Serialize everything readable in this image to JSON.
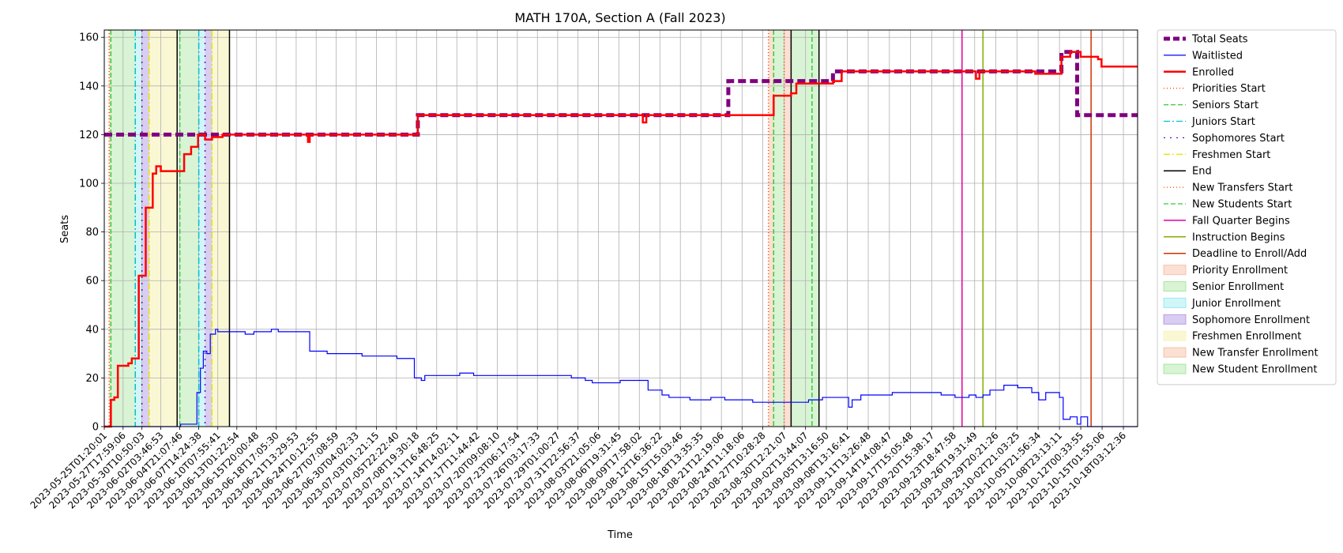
{
  "chart_data": {
    "type": "line",
    "title": "MATH 170A, Section A (Fall 2023)",
    "xlabel": "Time",
    "ylabel": "Seats",
    "ylim": [
      0,
      163
    ],
    "yticks": [
      0,
      20,
      40,
      60,
      80,
      100,
      120,
      140,
      160
    ],
    "grid": true,
    "legend_position": "outside-right",
    "x_range": [
      "2023-05-25T01:20:01",
      "2023-10-20T04:00:00"
    ],
    "xticks": [
      "2023-05-25T01:20:01",
      "2023-05-27T17:59:06",
      "2023-05-30T10:50:03",
      "2023-06-02T03:46:53",
      "2023-06-04T21:07:46",
      "2023-06-07T14:24:38",
      "2023-06-10T07:55:41",
      "2023-06-13T01:22:54",
      "2023-06-15T20:00:48",
      "2023-06-18T17:05:30",
      "2023-06-21T13:29:53",
      "2023-06-24T10:12:55",
      "2023-06-27T07:08:59",
      "2023-06-30T04:02:33",
      "2023-07-03T01:21:15",
      "2023-07-05T22:22:40",
      "2023-07-08T19:30:18",
      "2023-07-11T16:48:25",
      "2023-07-14T14:02:11",
      "2023-07-17T11:44:42",
      "2023-07-20T09:08:10",
      "2023-07-23T06:17:54",
      "2023-07-26T03:17:33",
      "2023-07-29T01:00:27",
      "2023-07-31T22:56:37",
      "2023-08-03T21:05:06",
      "2023-08-06T19:31:45",
      "2023-08-09T17:58:02",
      "2023-08-12T16:36:22",
      "2023-08-15T15:03:46",
      "2023-08-18T13:35:35",
      "2023-08-21T12:19:06",
      "2023-08-24T11:18:06",
      "2023-08-27T10:28:28",
      "2023-08-30T12:21:07",
      "2023-09-02T13:44:07",
      "2023-09-05T13:16:50",
      "2023-09-08T13:16:41",
      "2023-09-11T13:26:48",
      "2023-09-14T14:08:47",
      "2023-09-17T15:05:48",
      "2023-09-20T15:38:17",
      "2023-09-23T18:47:58",
      "2023-09-26T19:31:49",
      "2023-09-29T20:21:26",
      "2023-10-02T21:03:25",
      "2023-10-05T21:56:34",
      "2023-10-08T23:13:11",
      "2023-10-12T00:33:55",
      "2023-10-15T01:55:06",
      "2023-10-18T03:12:36"
    ],
    "series": [
      {
        "name": "Total Seats",
        "color": "#800080",
        "style": "dashed-thick",
        "points": [
          [
            "2023-05-25T01:20:01",
            120
          ],
          [
            "2023-07-08T19:30:18",
            120
          ],
          [
            "2023-07-09T00:00:00",
            128
          ],
          [
            "2023-08-22T00:00:00",
            128
          ],
          [
            "2023-08-22T12:00:00",
            142
          ],
          [
            "2023-09-06T00:00:00",
            142
          ],
          [
            "2023-09-06T12:00:00",
            146
          ],
          [
            "2023-10-08T23:13:11",
            146
          ],
          [
            "2023-10-09T06:00:00",
            154
          ],
          [
            "2023-10-11T00:00:00",
            154
          ],
          [
            "2023-10-11T12:00:00",
            128
          ],
          [
            "2023-10-20T04:00:00",
            128
          ]
        ]
      },
      {
        "name": "Waitlisted",
        "color": "#0000ff",
        "style": "solid-thin",
        "points": [
          [
            "2023-05-25T01:20:01",
            0
          ],
          [
            "2023-06-04T21:07:46",
            0
          ],
          [
            "2023-06-05T00:00:00",
            1
          ],
          [
            "2023-06-06T12:00:00",
            1
          ],
          [
            "2023-06-07T08:00:00",
            14
          ],
          [
            "2023-06-07T20:00:00",
            24
          ],
          [
            "2023-06-08T06:00:00",
            31
          ],
          [
            "2023-06-08T18:00:00",
            30
          ],
          [
            "2023-06-09T06:00:00",
            38
          ],
          [
            "2023-06-10T00:00:00",
            40
          ],
          [
            "2023-06-10T07:55:41",
            39
          ],
          [
            "2023-06-14T00:00:00",
            39
          ],
          [
            "2023-06-14T06:00:00",
            38
          ],
          [
            "2023-06-15T12:00:00",
            39
          ],
          [
            "2023-06-18T00:00:00",
            40
          ],
          [
            "2023-06-19T00:00:00",
            39
          ],
          [
            "2023-06-23T00:00:00",
            39
          ],
          [
            "2023-06-23T12:00:00",
            31
          ],
          [
            "2023-06-26T00:00:00",
            30
          ],
          [
            "2023-06-29T00:00:00",
            30
          ],
          [
            "2023-07-01T00:00:00",
            29
          ],
          [
            "2023-07-06T00:00:00",
            28
          ],
          [
            "2023-07-08T00:00:00",
            28
          ],
          [
            "2023-07-08T12:00:00",
            20
          ],
          [
            "2023-07-09T12:00:00",
            19
          ],
          [
            "2023-07-10T00:00:00",
            21
          ],
          [
            "2023-07-15T00:00:00",
            22
          ],
          [
            "2023-07-17T00:00:00",
            21
          ],
          [
            "2023-07-30T00:00:00",
            21
          ],
          [
            "2023-07-31T00:00:00",
            20
          ],
          [
            "2023-08-02T00:00:00",
            19
          ],
          [
            "2023-08-03T00:00:00",
            18
          ],
          [
            "2023-08-07T00:00:00",
            19
          ],
          [
            "2023-08-10T00:00:00",
            19
          ],
          [
            "2023-08-11T00:00:00",
            15
          ],
          [
            "2023-08-13T00:00:00",
            13
          ],
          [
            "2023-08-14T00:00:00",
            12
          ],
          [
            "2023-08-17T00:00:00",
            11
          ],
          [
            "2023-08-20T00:00:00",
            12
          ],
          [
            "2023-08-22T00:00:00",
            11
          ],
          [
            "2023-08-26T00:00:00",
            10
          ],
          [
            "2023-09-03T00:00:00",
            11
          ],
          [
            "2023-09-05T00:00:00",
            12
          ],
          [
            "2023-09-08T13:16:41",
            12
          ],
          [
            "2023-09-08T18:00:00",
            8
          ],
          [
            "2023-09-09T06:00:00",
            11
          ],
          [
            "2023-09-10T12:00:00",
            13
          ],
          [
            "2023-09-14T00:00:00",
            13
          ],
          [
            "2023-09-15T00:00:00",
            14
          ],
          [
            "2023-09-20T00:00:00",
            14
          ],
          [
            "2023-09-22T00:00:00",
            13
          ],
          [
            "2023-09-24T00:00:00",
            12
          ],
          [
            "2023-09-26T00:00:00",
            13
          ],
          [
            "2023-09-27T00:00:00",
            12
          ],
          [
            "2023-09-28T00:00:00",
            13
          ],
          [
            "2023-09-29T00:00:00",
            15
          ],
          [
            "2023-10-01T00:00:00",
            17
          ],
          [
            "2023-10-03T00:00:00",
            16
          ],
          [
            "2023-10-05T00:00:00",
            14
          ],
          [
            "2023-10-06T00:00:00",
            11
          ],
          [
            "2023-10-07T00:00:00",
            14
          ],
          [
            "2023-10-08T23:13:11",
            12
          ],
          [
            "2023-10-09T12:00:00",
            3
          ],
          [
            "2023-10-10T12:00:00",
            4
          ],
          [
            "2023-10-11T12:00:00",
            1
          ],
          [
            "2023-10-12T00:33:55",
            4
          ],
          [
            "2023-10-13T00:00:00",
            0
          ],
          [
            "2023-10-20T04:00:00",
            0
          ]
        ]
      },
      {
        "name": "Enrolled",
        "color": "#ff0000",
        "style": "solid-thick",
        "points": [
          [
            "2023-05-25T01:20:01",
            0
          ],
          [
            "2023-05-25T18:00:00",
            0
          ],
          [
            "2023-05-26T00:00:00",
            11
          ],
          [
            "2023-05-26T12:00:00",
            12
          ],
          [
            "2023-05-27T00:00:00",
            25
          ],
          [
            "2023-05-28T12:00:00",
            26
          ],
          [
            "2023-05-29T00:00:00",
            28
          ],
          [
            "2023-05-30T00:00:00",
            62
          ],
          [
            "2023-05-31T00:00:00",
            90
          ],
          [
            "2023-06-01T00:00:00",
            104
          ],
          [
            "2023-06-01T12:00:00",
            107
          ],
          [
            "2023-06-02T03:46:53",
            105
          ],
          [
            "2023-06-04T21:07:46",
            105
          ],
          [
            "2023-06-05T12:00:00",
            112
          ],
          [
            "2023-06-06T12:00:00",
            115
          ],
          [
            "2023-06-07T12:00:00",
            120
          ],
          [
            "2023-06-08T12:00:00",
            118
          ],
          [
            "2023-06-09T12:00:00",
            119
          ],
          [
            "2023-06-11T00:00:00",
            120
          ],
          [
            "2023-06-23T00:00:00",
            120
          ],
          [
            "2023-06-23T06:00:00",
            117
          ],
          [
            "2023-06-23T12:00:00",
            120
          ],
          [
            "2023-07-08T19:30:18",
            120
          ],
          [
            "2023-07-09T00:00:00",
            128
          ],
          [
            "2023-08-09T17:58:02",
            128
          ],
          [
            "2023-08-10T06:00:00",
            125
          ],
          [
            "2023-08-10T18:00:00",
            128
          ],
          [
            "2023-08-28T12:00:00",
            128
          ],
          [
            "2023-08-29T00:00:00",
            136
          ],
          [
            "2023-08-31T12:00:00",
            137
          ],
          [
            "2023-09-01T06:00:00",
            141
          ],
          [
            "2023-09-06T00:00:00",
            141
          ],
          [
            "2023-09-06T12:00:00",
            142
          ],
          [
            "2023-09-07T06:00:00",
            142
          ],
          [
            "2023-09-07T18:00:00",
            146
          ],
          [
            "2023-09-26T12:00:00",
            146
          ],
          [
            "2023-09-27T00:00:00",
            143
          ],
          [
            "2023-09-27T12:00:00",
            146
          ],
          [
            "2023-10-05T12:00:00",
            145
          ],
          [
            "2023-10-08T23:13:11",
            145
          ],
          [
            "2023-10-09T06:00:00",
            152
          ],
          [
            "2023-10-10T12:00:00",
            154
          ],
          [
            "2023-10-12T00:00:00",
            152
          ],
          [
            "2023-10-14T12:00:00",
            151
          ],
          [
            "2023-10-15T00:00:00",
            148
          ],
          [
            "2023-10-20T04:00:00",
            148
          ]
        ]
      }
    ],
    "vlines": [
      {
        "name": "Priorities Start",
        "color": "#ff4500",
        "dash": "1,3",
        "times": [
          "2023-05-25T18:00:00",
          "2023-08-28T06:00:00"
        ]
      },
      {
        "name": "Seniors Start",
        "color": "#32cd32",
        "dash": "6,3",
        "times": [
          "2023-05-26T00:00:00",
          "2023-06-04T21:07:46"
        ]
      },
      {
        "name": "Juniors Start",
        "color": "#00bfd0",
        "dash": "8,3,2,3",
        "times": [
          "2023-05-29T12:00:00",
          "2023-06-07T14:24:38"
        ]
      },
      {
        "name": "Sophomores Start",
        "color": "#6a0dad",
        "dash": "2,6",
        "times": [
          "2023-05-30T10:50:03",
          "2023-06-08T12:00:00"
        ]
      },
      {
        "name": "Freshmen Start",
        "color": "#e6e600",
        "dash": "8,3,2,3",
        "times": [
          "2023-05-31T12:00:00",
          "2023-06-09T12:00:00"
        ]
      },
      {
        "name": "End",
        "color": "#000000",
        "dash": "",
        "times": [
          "2023-06-04T12:00:00",
          "2023-06-12T00:00:00",
          "2023-08-31T12:00:00",
          "2023-09-04T12:00:00"
        ]
      },
      {
        "name": "New Transfers Start",
        "color": "#ff4500",
        "dash": "1,3",
        "times": [
          "2023-08-30T12:00:00"
        ]
      },
      {
        "name": "New Students Start",
        "color": "#32cd32",
        "dash": "6,3",
        "times": [
          "2023-08-29T00:00:00",
          "2023-09-03T12:00:00"
        ]
      },
      {
        "name": "Fall Quarter Begins",
        "color": "#e000a0",
        "dash": "",
        "times": [
          "2023-09-25T00:00:00"
        ]
      },
      {
        "name": "Instruction Begins",
        "color": "#80b000",
        "dash": "",
        "times": [
          "2023-09-28T00:00:00"
        ]
      },
      {
        "name": "Deadline to Enroll/Add",
        "color": "#d03000",
        "dash": "",
        "times": [
          "2023-10-13T12:00:00"
        ]
      }
    ],
    "bands": [
      {
        "name": "Priority Enrollment",
        "color": "#f4a582",
        "opacity": 0.35,
        "ranges": [
          [
            "2023-05-25T18:00:00",
            "2023-05-26T00:00:00"
          ]
        ]
      },
      {
        "name": "Senior Enrollment",
        "color": "#7fdc6f",
        "opacity": 0.3,
        "ranges": [
          [
            "2023-05-26T00:00:00",
            "2023-05-29T12:00:00"
          ],
          [
            "2023-06-04T21:07:46",
            "2023-06-07T14:24:38"
          ]
        ]
      },
      {
        "name": "Junior Enrollment",
        "color": "#66e0e8",
        "opacity": 0.3,
        "ranges": [
          [
            "2023-05-29T12:00:00",
            "2023-05-30T10:50:03"
          ],
          [
            "2023-06-07T14:24:38",
            "2023-06-08T12:00:00"
          ]
        ]
      },
      {
        "name": "Sophomore Enrollment",
        "color": "#9370db",
        "opacity": 0.35,
        "ranges": [
          [
            "2023-05-30T10:50:03",
            "2023-05-31T12:00:00"
          ],
          [
            "2023-06-08T12:00:00",
            "2023-06-09T12:00:00"
          ]
        ]
      },
      {
        "name": "Freshmen Enrollment",
        "color": "#f5f0a0",
        "opacity": 0.45,
        "ranges": [
          [
            "2023-05-31T12:00:00",
            "2023-06-04T12:00:00"
          ],
          [
            "2023-06-09T12:00:00",
            "2023-06-12T00:00:00"
          ]
        ]
      },
      {
        "name": "New Transfer Enrollment",
        "color": "#f4a582",
        "opacity": 0.35,
        "ranges": [
          [
            "2023-08-28T06:00:00",
            "2023-08-29T00:00:00"
          ],
          [
            "2023-08-30T12:00:00",
            "2023-08-31T12:00:00"
          ]
        ]
      },
      {
        "name": "New Student Enrollment",
        "color": "#7fdc6f",
        "opacity": 0.3,
        "ranges": [
          [
            "2023-08-29T00:00:00",
            "2023-08-30T12:00:00"
          ],
          [
            "2023-08-31T12:00:00",
            "2023-09-04T12:00:00"
          ]
        ]
      }
    ],
    "legend": [
      {
        "label": "Total Seats",
        "kind": "line",
        "color": "#800080",
        "width": 5,
        "dash": "8,4"
      },
      {
        "label": "Waitlisted",
        "kind": "line",
        "color": "#0000ff",
        "width": 1.3,
        "dash": ""
      },
      {
        "label": "Enrolled",
        "kind": "line",
        "color": "#ff0000",
        "width": 2.5,
        "dash": ""
      },
      {
        "label": "Priorities Start",
        "kind": "line",
        "color": "#ff4500",
        "width": 1.3,
        "dash": "1,3"
      },
      {
        "label": "Seniors Start",
        "kind": "line",
        "color": "#32cd32",
        "width": 1.3,
        "dash": "6,3"
      },
      {
        "label": "Juniors Start",
        "kind": "line",
        "color": "#00bfd0",
        "width": 1.3,
        "dash": "8,3,2,3"
      },
      {
        "label": "Sophomores Start",
        "kind": "line",
        "color": "#6a0dad",
        "width": 1.3,
        "dash": "2,6"
      },
      {
        "label": "Freshmen Start",
        "kind": "line",
        "color": "#e6e600",
        "width": 1.3,
        "dash": "8,3,2,3"
      },
      {
        "label": "End",
        "kind": "line",
        "color": "#000000",
        "width": 1.5,
        "dash": ""
      },
      {
        "label": "New Transfers Start",
        "kind": "line",
        "color": "#ff4500",
        "width": 1.3,
        "dash": "1,3"
      },
      {
        "label": "New Students Start",
        "kind": "line",
        "color": "#32cd32",
        "width": 1.3,
        "dash": "6,3"
      },
      {
        "label": "Fall Quarter Begins",
        "kind": "line",
        "color": "#e000a0",
        "width": 1.5,
        "dash": ""
      },
      {
        "label": "Instruction Begins",
        "kind": "line",
        "color": "#80b000",
        "width": 1.5,
        "dash": ""
      },
      {
        "label": "Deadline to Enroll/Add",
        "kind": "line",
        "color": "#d03000",
        "width": 1.5,
        "dash": ""
      },
      {
        "label": "Priority Enrollment",
        "kind": "patch",
        "color": "#f4a582",
        "opacity": 0.35
      },
      {
        "label": "Senior Enrollment",
        "kind": "patch",
        "color": "#7fdc6f",
        "opacity": 0.3
      },
      {
        "label": "Junior Enrollment",
        "kind": "patch",
        "color": "#66e0e8",
        "opacity": 0.3
      },
      {
        "label": "Sophomore Enrollment",
        "kind": "patch",
        "color": "#9370db",
        "opacity": 0.35
      },
      {
        "label": "Freshmen Enrollment",
        "kind": "patch",
        "color": "#f5f0a0",
        "opacity": 0.45
      },
      {
        "label": "New Transfer Enrollment",
        "kind": "patch",
        "color": "#f4a582",
        "opacity": 0.35
      },
      {
        "label": "New Student Enrollment",
        "kind": "patch",
        "color": "#7fdc6f",
        "opacity": 0.3
      }
    ]
  }
}
